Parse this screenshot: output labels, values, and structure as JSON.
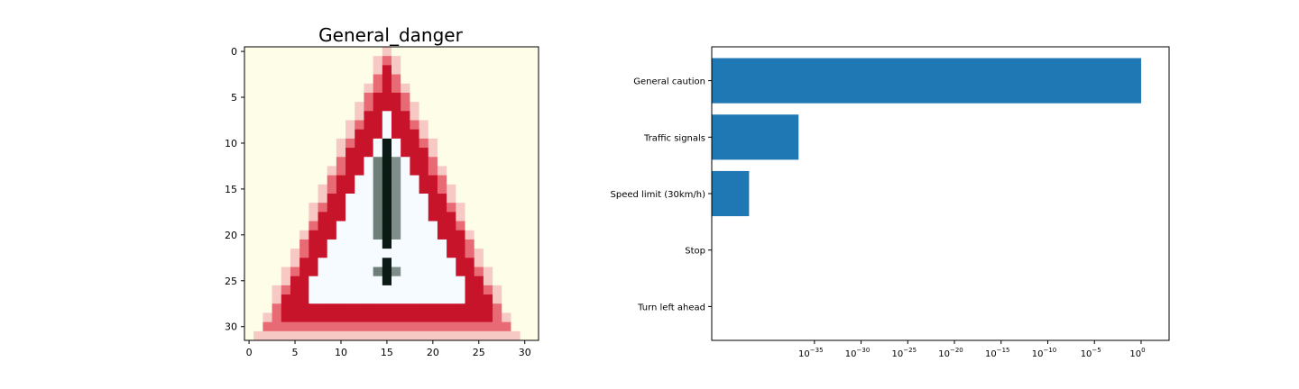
{
  "image_panel": {
    "title": "General_danger",
    "xticks": [
      "0",
      "5",
      "10",
      "15",
      "20",
      "25",
      "30"
    ],
    "yticks": [
      "0",
      "5",
      "10",
      "15",
      "20",
      "25",
      "30"
    ],
    "grid_size": 32
  },
  "chart_data": {
    "type": "bar",
    "orientation": "horizontal",
    "scale": "log",
    "categories": [
      "General caution",
      "Traffic signals",
      "Speed limit (30km/h)",
      "Stop",
      "Turn left ahead"
    ],
    "values": [
      1.0,
      2e-37,
      1e-42,
      1e-52,
      1e-55
    ],
    "xlim": [
      1e-46,
      1000.0
    ],
    "xticks": [
      {
        "base": "10",
        "exp": "−35",
        "value": 1e-35
      },
      {
        "base": "10",
        "exp": "−30",
        "value": 1e-30
      },
      {
        "base": "10",
        "exp": "−25",
        "value": 1e-25
      },
      {
        "base": "10",
        "exp": "−20",
        "value": 1e-20
      },
      {
        "base": "10",
        "exp": "−15",
        "value": 1e-15
      },
      {
        "base": "10",
        "exp": "−10",
        "value": 1e-10
      },
      {
        "base": "10",
        "exp": "−5",
        "value": 1e-05
      },
      {
        "base": "10",
        "exp": "0",
        "value": 1
      }
    ],
    "bar_color": "#1f77b4",
    "grid": false
  },
  "colors": {
    "sign_red": "#c8142a",
    "background": "#fdfde8"
  }
}
